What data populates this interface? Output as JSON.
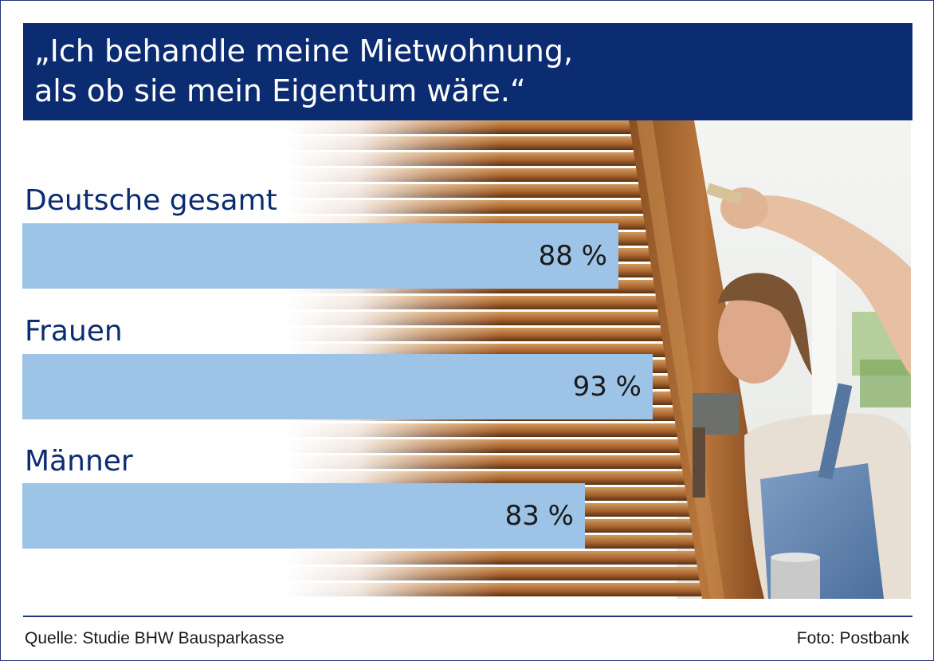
{
  "header": {
    "title_line1": "„Ich behandle meine Mietwohnung,",
    "title_line2": "als ob sie mein Eigentum wäre.“"
  },
  "colors": {
    "header_bg": "#0c2c72",
    "header_text": "#ffffff",
    "label_text": "#0c2c72",
    "bar_fill": "#9dc3e6",
    "frame_border": "#23367c"
  },
  "chart_data": {
    "type": "bar",
    "orientation": "horizontal",
    "categories": [
      "Deutsche gesamt",
      "Frauen",
      "Männer"
    ],
    "values": [
      88,
      93,
      83
    ],
    "value_labels": [
      "88 %",
      "93 %",
      "83 %"
    ],
    "unit": "%",
    "xlim": [
      0,
      100
    ],
    "grid": false,
    "legend": "none"
  },
  "background_photo": {
    "icon": "photo-woman-painting-shutter-icon"
  },
  "footer": {
    "source": "Quelle: Studie BHW Bausparkasse",
    "photo_credit": "Foto: Postbank"
  }
}
